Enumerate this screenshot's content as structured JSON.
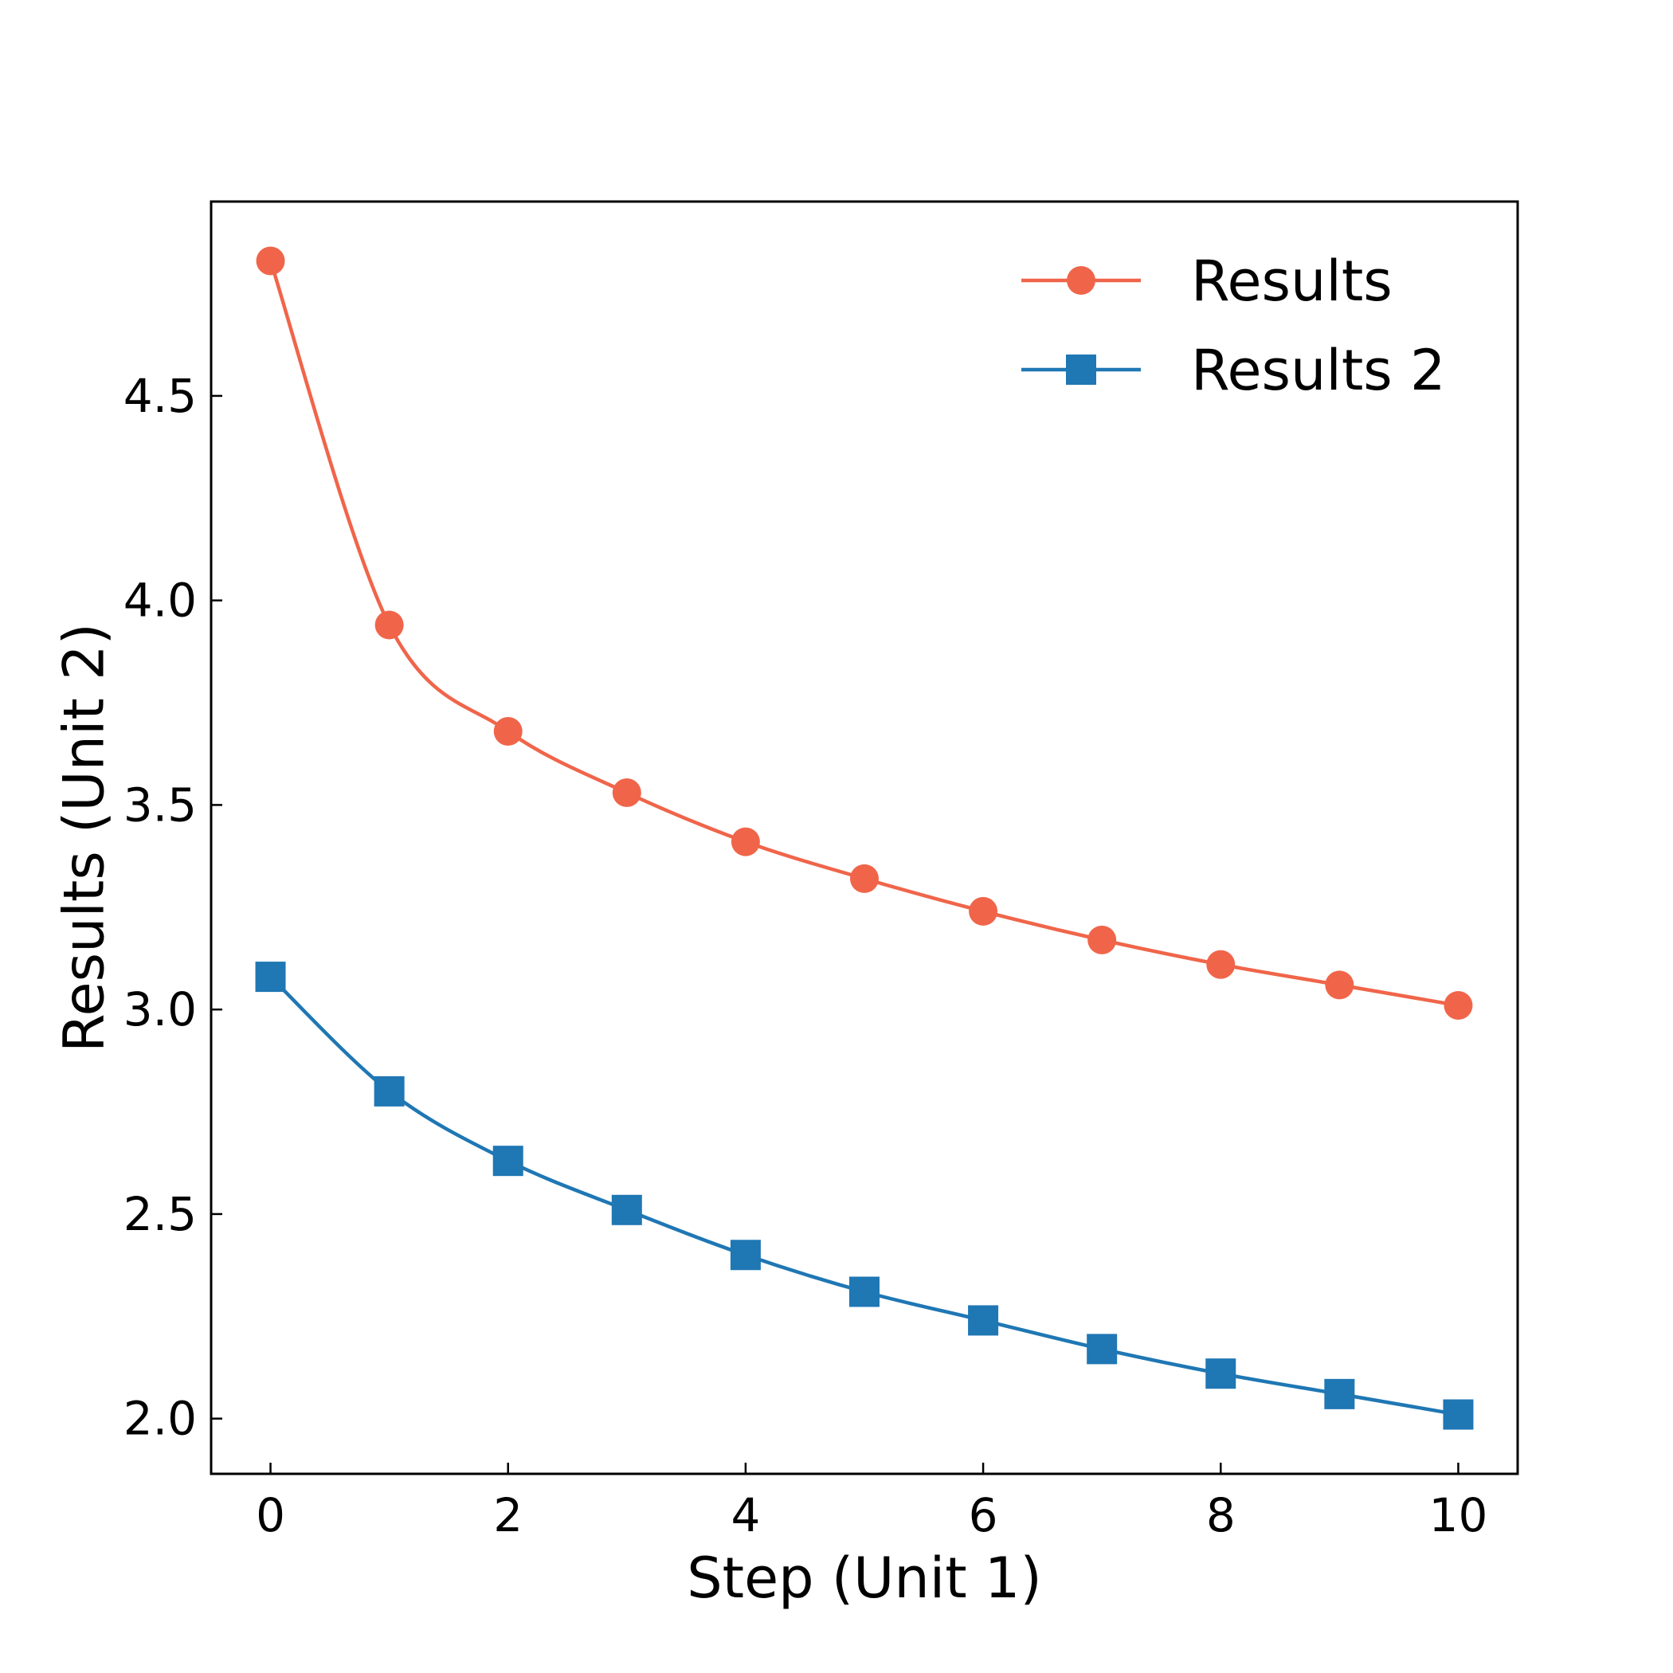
{
  "chart_data": {
    "type": "line",
    "title": "",
    "xlabel": "Step (Unit 1)",
    "ylabel": "Results (Unit 2)",
    "xlim": [
      -0.5,
      10.5
    ],
    "ylim": [
      1.865,
      4.975
    ],
    "xticks": [
      0,
      2,
      4,
      6,
      8,
      10
    ],
    "xtick_labels": [
      "0",
      "2",
      "4",
      "6",
      "8",
      "10"
    ],
    "yticks": [
      2.0,
      2.5,
      3.0,
      3.5,
      4.0,
      4.5
    ],
    "ytick_labels": [
      "2.0",
      "2.5",
      "3.0",
      "3.5",
      "4.0",
      "4.5"
    ],
    "grid": false,
    "legend_position": "top-right",
    "x": [
      0,
      1,
      2,
      3,
      4,
      5,
      6,
      7,
      8,
      9,
      10
    ],
    "series": [
      {
        "name": "Results",
        "marker": "circle",
        "color": "#f0654a",
        "values": [
          4.83,
          3.94,
          3.68,
          3.53,
          3.41,
          3.32,
          3.24,
          3.17,
          3.11,
          3.06,
          3.01
        ]
      },
      {
        "name": "Results 2",
        "marker": "square",
        "color": "#1f77b4",
        "values": [
          3.08,
          2.8,
          2.63,
          2.51,
          2.4,
          2.31,
          2.24,
          2.17,
          2.11,
          2.06,
          2.01
        ]
      }
    ]
  }
}
